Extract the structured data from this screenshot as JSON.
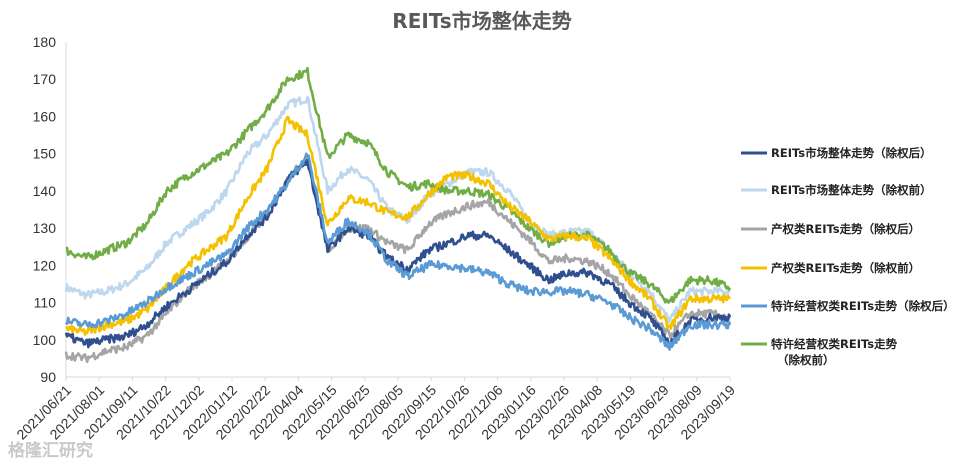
{
  "chart_data": {
    "type": "line",
    "title": "REITs市场整体走势",
    "xlabel": "",
    "ylabel": "",
    "ylim": [
      90,
      180
    ],
    "yticks": [
      90,
      100,
      110,
      120,
      130,
      140,
      150,
      160,
      170,
      180
    ],
    "x_tick_labels": [
      "2021/06/21",
      "2021/08/01",
      "2021/09/11",
      "2021/10/22",
      "2021/12/02",
      "2022/01/12",
      "2022/02/22",
      "2022/04/04",
      "2022/05/15",
      "2022/06/25",
      "2022/08/05",
      "2022/09/15",
      "2022/10/26",
      "2022/12/06",
      "2023/01/16",
      "2023/02/26",
      "2023/04/08",
      "2023/05/19",
      "2023/06/29",
      "2023/08/09",
      "2023/09/19"
    ],
    "grid": false,
    "legend_position": "right",
    "series": [
      {
        "name": "REITs市场整体走势（除权后）",
        "legend_lines": [
          "REITs市场整体走势（除权后）"
        ],
        "color": "#2f4f8f",
        "values": [
          101,
          99,
          100,
          101,
          104,
          109,
          113,
          117,
          121,
          128,
          133,
          143,
          148,
          124,
          130,
          128,
          122,
          119,
          124,
          126,
          128,
          128,
          124,
          120,
          116,
          118,
          118,
          115,
          110,
          106,
          99,
          105,
          106,
          106
        ]
      },
      {
        "name": "REITs市场整体走势（除权前）",
        "legend_lines": [
          "REITs市场整体走势（除权前）"
        ],
        "color": "#bdd7ee",
        "values": [
          114,
          112,
          113,
          115,
          119,
          126,
          130,
          134,
          140,
          150,
          155,
          163,
          165,
          140,
          146,
          143,
          135,
          132,
          139,
          142,
          145,
          145,
          140,
          132,
          128,
          129,
          129,
          124,
          118,
          113,
          105,
          113,
          113,
          113
        ]
      },
      {
        "name": "产权类REITs走势（除权后）",
        "legend_lines": [
          "产权类REITs走势（除权后）"
        ],
        "color": "#a5a5a5",
        "values": [
          96,
          95,
          97,
          98,
          101,
          107,
          113,
          117,
          121,
          127,
          134,
          143,
          149,
          124,
          130,
          130,
          126,
          124,
          131,
          134,
          136,
          137,
          132,
          127,
          121,
          122,
          121,
          118,
          112,
          107,
          101,
          107,
          107,
          106
        ]
      },
      {
        "name": "产权类REITs走势（除权前）",
        "legend_lines": [
          "产权类REITs走势（除权前）"
        ],
        "color": "#f5c000",
        "values": [
          103,
          102,
          104,
          105,
          108,
          114,
          120,
          124,
          128,
          138,
          146,
          159,
          155,
          131,
          138,
          137,
          134,
          133,
          139,
          144,
          144,
          142,
          136,
          132,
          127,
          128,
          127,
          122,
          116,
          111,
          103,
          111,
          111,
          111
        ]
      },
      {
        "name": "特许经营权类REITs走势（除权后）",
        "legend_lines": [
          "特许经营权类REITs走势（除权后）"
        ],
        "color": "#5b9bd5",
        "values": [
          105,
          104,
          105,
          107,
          110,
          114,
          117,
          120,
          123,
          130,
          135,
          142,
          150,
          126,
          132,
          129,
          121,
          117,
          120,
          120,
          119,
          118,
          115,
          113,
          113,
          113,
          112,
          110,
          106,
          103,
          98,
          104,
          104,
          104
        ]
      },
      {
        "name": "特许经营权类REITs走势（除权前）",
        "legend_lines": [
          "特许经营权类REITs走势",
          "（除权前）"
        ],
        "color": "#70ad47",
        "values": [
          124,
          122,
          124,
          126,
          131,
          140,
          144,
          147,
          150,
          156,
          162,
          170,
          172,
          149,
          155,
          153,
          145,
          141,
          142,
          140,
          140,
          139,
          135,
          130,
          126,
          128,
          128,
          124,
          118,
          115,
          110,
          116,
          116,
          114
        ]
      }
    ]
  },
  "watermark": "格隆汇研究"
}
